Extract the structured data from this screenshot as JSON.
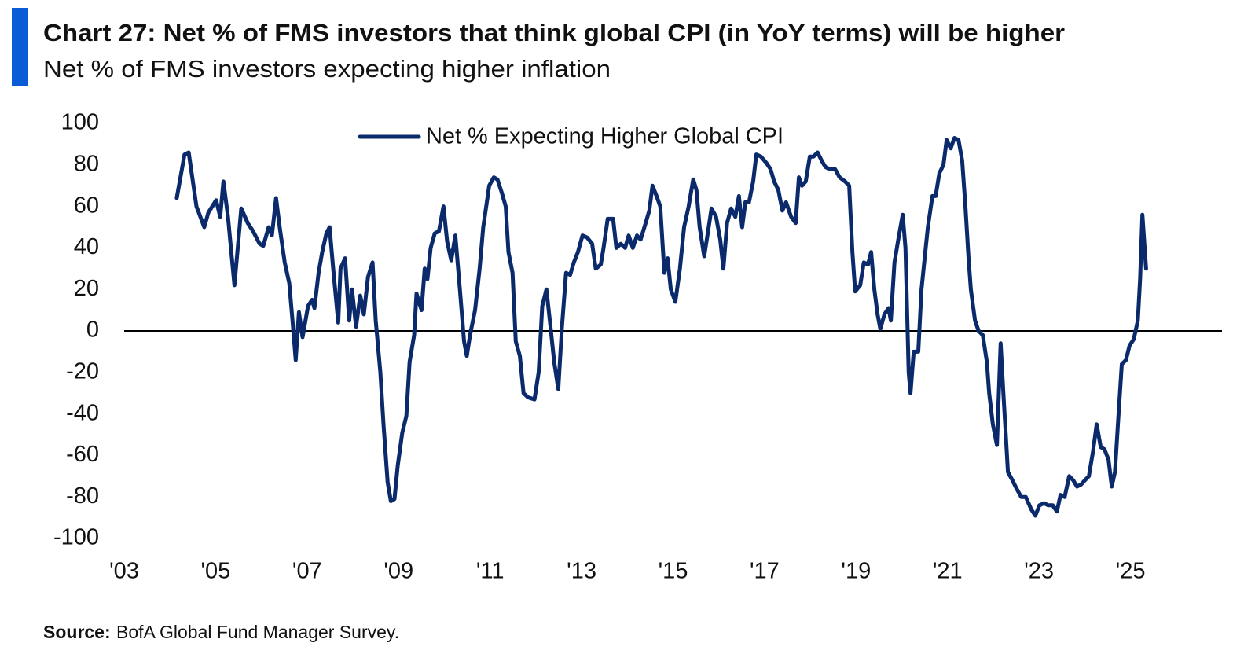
{
  "chart_data": {
    "type": "line",
    "title": "Chart 27: Net % of FMS investors that think global CPI (in YoY terms) will be higher",
    "subtitle": "Net % of FMS investors expecting higher inflation",
    "source_label": "Source:",
    "source_text": "BofA Global Fund Manager Survey.",
    "legend": "top",
    "grid": false,
    "xlim": [
      2003,
      2027
    ],
    "xticks": [
      {
        "value": 2003,
        "label": "'03"
      },
      {
        "value": 2005,
        "label": "'05"
      },
      {
        "value": 2007,
        "label": "'07"
      },
      {
        "value": 2009,
        "label": "'09"
      },
      {
        "value": 2011,
        "label": "'11"
      },
      {
        "value": 2013,
        "label": "'13"
      },
      {
        "value": 2015,
        "label": "'15"
      },
      {
        "value": 2017,
        "label": "'17"
      },
      {
        "value": 2019,
        "label": "'19"
      },
      {
        "value": 2021,
        "label": "'21"
      },
      {
        "value": 2023,
        "label": "'23"
      },
      {
        "value": 2025,
        "label": "'25"
      }
    ],
    "ylim": [
      -100,
      100
    ],
    "yticks": [
      -100,
      -80,
      -60,
      -40,
      -20,
      0,
      20,
      40,
      60,
      80,
      100
    ],
    "x": [
      2004.15,
      2004.32,
      2004.41,
      2004.58,
      2004.75,
      2004.84,
      2005.01,
      2005.1,
      2005.17,
      2005.27,
      2005.41,
      2005.56,
      2005.7,
      2005.82,
      2005.96,
      2006.04,
      2006.16,
      2006.23,
      2006.32,
      2006.4,
      2006.51,
      2006.61,
      2006.68,
      2006.75,
      2006.82,
      2006.9,
      2007.02,
      2007.11,
      2007.16,
      2007.25,
      2007.33,
      2007.42,
      2007.49,
      2007.57,
      2007.68,
      2007.73,
      2007.83,
      2007.92,
      2007.98,
      2008.07,
      2008.16,
      2008.24,
      2008.33,
      2008.43,
      2008.5,
      2008.6,
      2008.67,
      2008.76,
      2008.83,
      2008.91,
      2008.98,
      2009.08,
      2009.17,
      2009.24,
      2009.34,
      2009.39,
      2009.5,
      2009.57,
      2009.63,
      2009.7,
      2009.79,
      2009.88,
      2009.98,
      2010.06,
      2010.15,
      2010.24,
      2010.34,
      2010.43,
      2010.49,
      2010.56,
      2010.67,
      2010.77,
      2010.85,
      2010.98,
      2011.08,
      2011.16,
      2011.25,
      2011.34,
      2011.4,
      2011.49,
      2011.56,
      2011.65,
      2011.73,
      2011.83,
      2011.97,
      2012.06,
      2012.14,
      2012.23,
      2012.32,
      2012.4,
      2012.49,
      2012.57,
      2012.66,
      2012.75,
      2012.83,
      2012.92,
      2013.02,
      2013.12,
      2013.23,
      2013.31,
      2013.42,
      2013.48,
      2013.57,
      2013.69,
      2013.76,
      2013.86,
      2013.95,
      2014.03,
      2014.12,
      2014.21,
      2014.29,
      2014.4,
      2014.48,
      2014.55,
      2014.64,
      2014.72,
      2014.81,
      2014.88,
      2014.95,
      2015.05,
      2015.15,
      2015.24,
      2015.34,
      2015.44,
      2015.51,
      2015.58,
      2015.68,
      2015.75,
      2015.84,
      2015.94,
      2016.03,
      2016.1,
      2016.18,
      2016.27,
      2016.36,
      2016.44,
      2016.51,
      2016.58,
      2016.66,
      2016.75,
      2016.82,
      2016.92,
      2017.04,
      2017.13,
      2017.21,
      2017.3,
      2017.39,
      2017.47,
      2017.58,
      2017.68,
      2017.75,
      2017.82,
      2017.9,
      2017.99,
      2018.07,
      2018.16,
      2018.25,
      2018.33,
      2018.42,
      2018.54,
      2018.64,
      2018.76,
      2018.85,
      2018.92,
      2018.98,
      2019.09,
      2019.17,
      2019.26,
      2019.33,
      2019.4,
      2019.47,
      2019.53,
      2019.62,
      2019.71,
      2019.76,
      2019.84,
      2019.93,
      2020.02,
      2020.08,
      2020.15,
      2020.19,
      2020.26,
      2020.36,
      2020.43,
      2020.5,
      2020.57,
      2020.67,
      2020.74,
      2020.82,
      2020.91,
      2020.98,
      2021.07,
      2021.15,
      2021.24,
      2021.32,
      2021.39,
      2021.46,
      2021.51,
      2021.6,
      2021.68,
      2021.77,
      2021.86,
      2021.91,
      2021.99,
      2022.08,
      2022.16,
      2022.22,
      2022.32,
      2022.42,
      2022.51,
      2022.61,
      2022.71,
      2022.83,
      2022.92,
      2023.01,
      2023.11,
      2023.2,
      2023.3,
      2023.39,
      2023.47,
      2023.56,
      2023.66,
      2023.75,
      2023.83,
      2023.92,
      2024.0,
      2024.09,
      2024.18,
      2024.26,
      2024.35,
      2024.43,
      2024.52,
      2024.59,
      2024.66,
      2024.74,
      2024.81,
      2024.9,
      2024.98,
      2025.07,
      2025.16,
      2025.21,
      2025.26,
      2025.34
    ],
    "series": [
      {
        "name": "Net % Expecting Higher Global CPI",
        "color": "#0b2a6b",
        "values": [
          64,
          85,
          86,
          60,
          50,
          57,
          63,
          55,
          72,
          55,
          22,
          59,
          52,
          48,
          42,
          41,
          50,
          46,
          64,
          50,
          33,
          23,
          5,
          -14,
          9,
          -3,
          12,
          15,
          11,
          28,
          38,
          47,
          50,
          30,
          4,
          30,
          35,
          5,
          20,
          2,
          17,
          8,
          26,
          33,
          5,
          -20,
          -45,
          -73,
          -82,
          -81,
          -65,
          -49,
          -41,
          -15,
          -2,
          18,
          10,
          30,
          25,
          40,
          47,
          48,
          60,
          43,
          34,
          46,
          20,
          -5,
          -12,
          -2,
          10,
          30,
          50,
          70,
          74,
          73,
          67,
          60,
          38,
          28,
          -5,
          -12,
          -30,
          -32,
          -33,
          -20,
          12,
          20,
          2,
          -15,
          -28,
          2,
          28,
          27,
          33,
          38,
          46,
          45,
          42,
          30,
          32,
          40,
          54,
          54,
          40,
          42,
          40,
          46,
          40,
          46,
          44,
          52,
          58,
          70,
          65,
          60,
          28,
          35,
          20,
          14,
          30,
          50,
          60,
          73,
          68,
          50,
          36,
          46,
          59,
          55,
          44,
          30,
          52,
          59,
          55,
          65,
          50,
          62,
          62,
          72,
          85,
          84,
          81,
          78,
          72,
          68,
          58,
          62,
          55,
          52,
          74,
          70,
          72,
          84,
          84,
          86,
          82,
          79,
          78,
          78,
          74,
          72,
          70,
          38,
          19,
          22,
          33,
          32,
          38,
          20,
          8,
          1,
          8,
          11,
          5,
          33,
          45,
          56,
          40,
          -20,
          -30,
          -10,
          -10,
          20,
          35,
          50,
          65,
          65,
          76,
          80,
          92,
          88,
          93,
          92,
          82,
          60,
          35,
          20,
          5,
          0,
          -2,
          -15,
          -30,
          -45,
          -55,
          -6,
          -30,
          -68,
          -72,
          -76,
          -80,
          -80,
          -86,
          -89,
          -84,
          -83,
          -84,
          -84,
          -87,
          -79,
          -80,
          -70,
          -72,
          -75,
          -74,
          -72,
          -70,
          -58,
          -45,
          -56,
          -57,
          -62,
          -75,
          -68,
          -40,
          -16,
          -14,
          -7,
          -4,
          5,
          25,
          56,
          30
        ]
      }
    ]
  }
}
